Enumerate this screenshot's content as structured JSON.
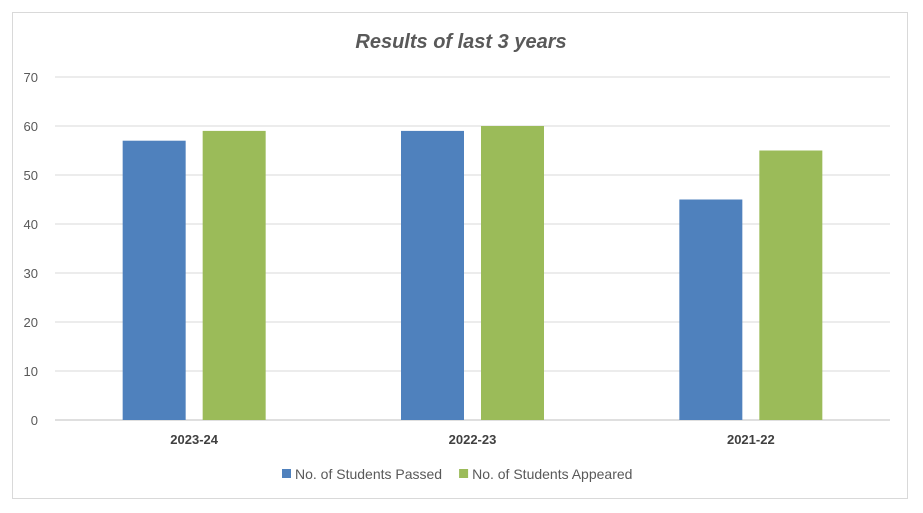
{
  "chart_data": {
    "type": "bar",
    "title": "Results of last 3 years",
    "categories": [
      "2023-24",
      "2022-23",
      "2021-22"
    ],
    "series": [
      {
        "name": "No. of Students Passed",
        "values": [
          57,
          59,
          45
        ],
        "color": "#4f81bd"
      },
      {
        "name": "No. of Students Appeared",
        "values": [
          59,
          60,
          55
        ],
        "color": "#9bbb59"
      }
    ],
    "xlabel": "",
    "ylabel": "",
    "ylim": [
      0,
      70
    ],
    "yticks": [
      "0",
      "10",
      "20",
      "30",
      "40",
      "50",
      "60",
      "70"
    ],
    "grid": true,
    "legend": "bottom"
  }
}
